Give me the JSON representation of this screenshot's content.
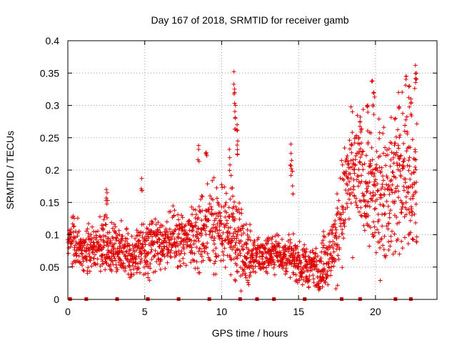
{
  "chart_data": {
    "type": "scatter",
    "title": "Day 167 of 2018, SRMTID for receiver gamb",
    "xlabel": "GPS time / hours",
    "ylabel": "SRMTID / TECUs",
    "xlim": [
      0,
      24
    ],
    "ylim": [
      0,
      0.4
    ],
    "x_ticks": [
      0,
      5,
      10,
      15,
      20
    ],
    "x_tick_labels": [
      "0",
      "5",
      "10",
      "15",
      "20"
    ],
    "y_ticks": [
      0,
      0.05,
      0.1,
      0.15,
      0.2,
      0.25,
      0.3,
      0.35,
      0.4
    ],
    "y_tick_labels": [
      "0",
      "0.05",
      "0.1",
      "0.15",
      "0.2",
      "0.25",
      "0.3",
      "0.35",
      "0.4"
    ],
    "grid": true,
    "marker": "+",
    "color": "#dd0000",
    "series": [
      {
        "name": "SRMTID",
        "profile": [
          [
            0.0,
            0.09
          ],
          [
            0.5,
            0.09
          ],
          [
            1.0,
            0.075
          ],
          [
            2.0,
            0.085
          ],
          [
            3.0,
            0.075
          ],
          [
            4.0,
            0.072
          ],
          [
            5.0,
            0.08
          ],
          [
            6.0,
            0.09
          ],
          [
            7.0,
            0.09
          ],
          [
            8.0,
            0.095
          ],
          [
            9.0,
            0.115
          ],
          [
            10.0,
            0.11
          ],
          [
            11.0,
            0.095
          ],
          [
            11.5,
            0.07
          ],
          [
            12.5,
            0.065
          ],
          [
            13.5,
            0.075
          ],
          [
            14.5,
            0.065
          ],
          [
            15.5,
            0.05
          ],
          [
            16.5,
            0.05
          ],
          [
            17.5,
            0.09
          ],
          [
            18.0,
            0.17
          ],
          [
            19.0,
            0.2
          ],
          [
            20.0,
            0.16
          ],
          [
            21.0,
            0.17
          ],
          [
            22.0,
            0.2
          ],
          [
            22.7,
            0.15
          ]
        ],
        "spread": [
          [
            0.0,
            0.025
          ],
          [
            8.0,
            0.03
          ],
          [
            9.0,
            0.045
          ],
          [
            11.0,
            0.05
          ],
          [
            12.0,
            0.02
          ],
          [
            15.0,
            0.02
          ],
          [
            17.0,
            0.03
          ],
          [
            18.0,
            0.06
          ],
          [
            20.0,
            0.07
          ],
          [
            22.7,
            0.08
          ]
        ],
        "peaks": [
          [
            8.5,
            0.238
          ],
          [
            9.0,
            0.227
          ],
          [
            10.5,
            0.232
          ],
          [
            10.8,
            0.352
          ],
          [
            10.85,
            0.32
          ],
          [
            10.9,
            0.3
          ],
          [
            11.0,
            0.27
          ],
          [
            11.05,
            0.245
          ],
          [
            14.5,
            0.24
          ],
          [
            14.55,
            0.215
          ],
          [
            14.6,
            0.198
          ],
          [
            19.0,
            0.275
          ],
          [
            19.5,
            0.3
          ],
          [
            19.8,
            0.338
          ],
          [
            19.9,
            0.32
          ],
          [
            21.5,
            0.32
          ],
          [
            22.0,
            0.345
          ],
          [
            22.2,
            0.33
          ],
          [
            22.3,
            0.31
          ],
          [
            22.6,
            0.362
          ],
          [
            22.65,
            0.35
          ],
          [
            2.5,
            0.17
          ],
          [
            2.55,
            0.165
          ],
          [
            4.8,
            0.187
          ],
          [
            21.3,
            0.28
          ]
        ],
        "gap_markers_x": [
          0.15,
          1.2,
          3.2,
          5.2,
          7.2,
          9.2,
          11.2,
          12.3,
          13.4,
          15.4,
          17.8,
          19.0,
          21.3,
          22.3
        ]
      }
    ]
  }
}
